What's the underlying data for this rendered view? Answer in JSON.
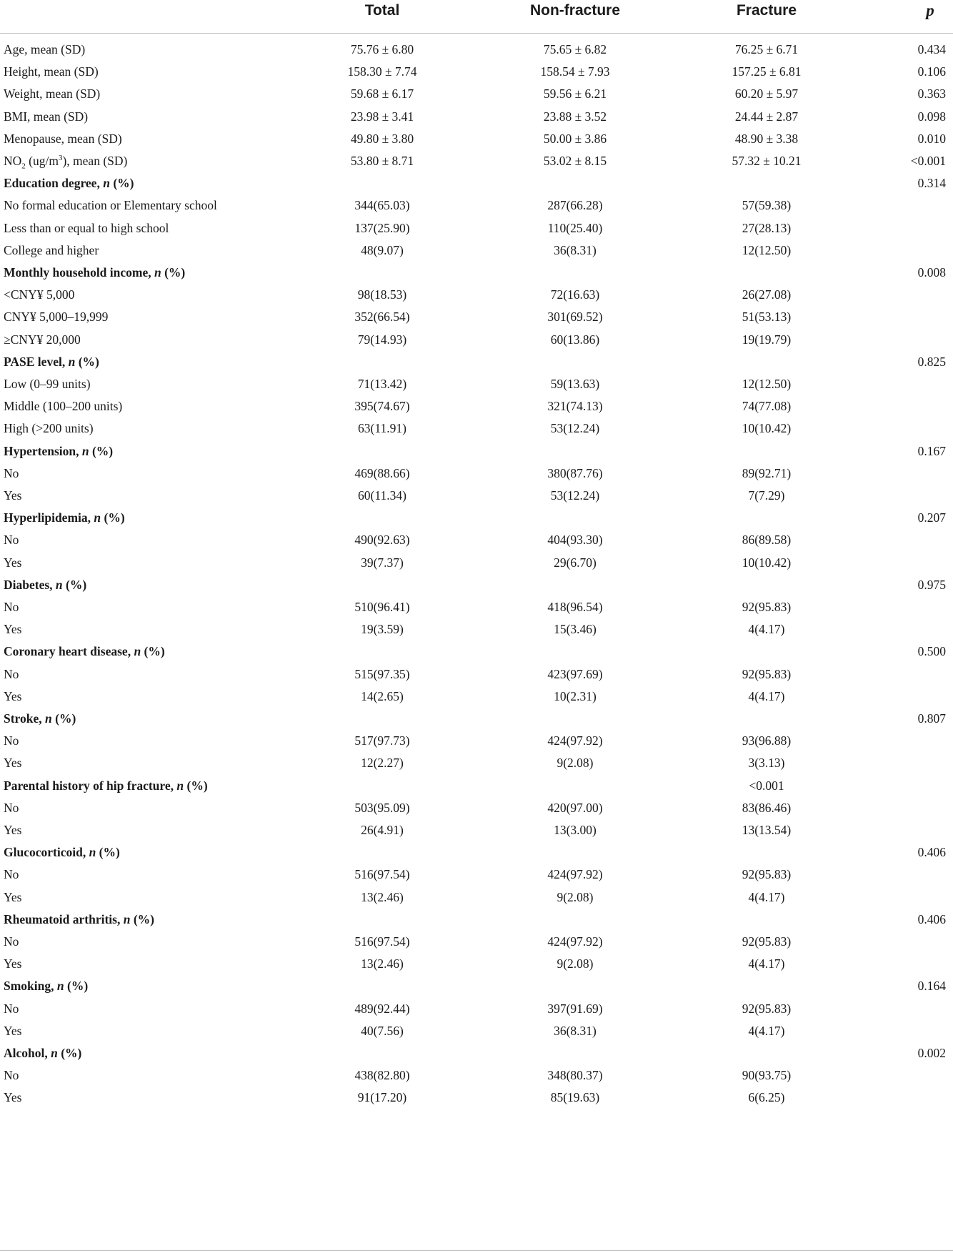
{
  "table": {
    "headers": [
      "",
      "Total",
      "Non-fracture",
      "Fracture",
      "p"
    ],
    "rows": [
      {
        "type": "data",
        "label": "Age, mean (SD)",
        "total": "75.76 ± 6.80",
        "non_fracture": "75.65 ± 6.82",
        "fracture": "76.25 ± 6.71",
        "p": "0.434"
      },
      {
        "type": "data",
        "label": "Height, mean (SD)",
        "total": "158.30 ± 7.74",
        "non_fracture": "158.54 ± 7.93",
        "fracture": "157.25 ± 6.81",
        "p": "0.106"
      },
      {
        "type": "data",
        "label": "Weight, mean (SD)",
        "total": "59.68 ± 6.17",
        "non_fracture": "59.56 ± 6.21",
        "fracture": "60.20 ± 5.97",
        "p": "0.363"
      },
      {
        "type": "data",
        "label": "BMI, mean (SD)",
        "total": "23.98 ± 3.41",
        "non_fracture": "23.88 ± 3.52",
        "fracture": "24.44 ± 2.87",
        "p": "0.098"
      },
      {
        "type": "data",
        "label": "Menopause, mean (SD)",
        "total": "49.80 ± 3.80",
        "non_fracture": "50.00 ± 3.86",
        "fracture": "48.90 ± 3.38",
        "p": "0.010"
      },
      {
        "type": "no2",
        "label": "NO₂ (ug/m³), mean (SD)",
        "total": "53.80 ± 8.71",
        "non_fracture": "53.02 ± 8.15",
        "fracture": "57.32 ± 10.21",
        "p": "<0.001"
      },
      {
        "type": "section",
        "label": "Education degree",
        "suffix": " (%)",
        "total": "",
        "non_fracture": "",
        "fracture": "",
        "p": "0.314"
      },
      {
        "type": "data",
        "label": "No formal education or Elementary school",
        "total": "344(65.03)",
        "non_fracture": "287(66.28)",
        "fracture": "57(59.38)",
        "p": ""
      },
      {
        "type": "data",
        "label": "Less than or equal to high school",
        "total": "137(25.90)",
        "non_fracture": "110(25.40)",
        "fracture": "27(28.13)",
        "p": ""
      },
      {
        "type": "data",
        "label": "College and higher",
        "total": "48(9.07)",
        "non_fracture": "36(8.31)",
        "fracture": "12(12.50)",
        "p": ""
      },
      {
        "type": "section",
        "label": "Monthly household income",
        "suffix": " (%)",
        "total": "",
        "non_fracture": "",
        "fracture": "",
        "p": "0.008"
      },
      {
        "type": "data",
        "label": "<CNY¥ 5,000",
        "total": "98(18.53)",
        "non_fracture": "72(16.63)",
        "fracture": "26(27.08)",
        "p": ""
      },
      {
        "type": "data",
        "label": "CNY¥ 5,000–19,999",
        "total": "352(66.54)",
        "non_fracture": "301(69.52)",
        "fracture": "51(53.13)",
        "p": ""
      },
      {
        "type": "data",
        "label": "≥CNY¥ 20,000",
        "total": "79(14.93)",
        "non_fracture": "60(13.86)",
        "fracture": "19(19.79)",
        "p": ""
      },
      {
        "type": "section",
        "label": "PASE level",
        "suffix": " (%)",
        "total": "",
        "non_fracture": "",
        "fracture": "",
        "p": "0.825"
      },
      {
        "type": "data",
        "label": "Low (0–99 units)",
        "total": "71(13.42)",
        "non_fracture": "59(13.63)",
        "fracture": "12(12.50)",
        "p": ""
      },
      {
        "type": "data",
        "label": "Middle (100–200 units)",
        "total": "395(74.67)",
        "non_fracture": "321(74.13)",
        "fracture": "74(77.08)",
        "p": ""
      },
      {
        "type": "data",
        "label": "High (>200 units)",
        "total": "63(11.91)",
        "non_fracture": "53(12.24)",
        "fracture": "10(10.42)",
        "p": ""
      },
      {
        "type": "section",
        "label": "Hypertension",
        "suffix": " (%)",
        "total": "",
        "non_fracture": "",
        "fracture": "",
        "p": "0.167"
      },
      {
        "type": "data",
        "label": "No",
        "total": "469(88.66)",
        "non_fracture": "380(87.76)",
        "fracture": "89(92.71)",
        "p": ""
      },
      {
        "type": "data",
        "label": "Yes",
        "total": "60(11.34)",
        "non_fracture": "53(12.24)",
        "fracture": "7(7.29)",
        "p": ""
      },
      {
        "type": "section",
        "label": "Hyperlipidemia",
        "suffix": " (%)",
        "total": "",
        "non_fracture": "",
        "fracture": "",
        "p": "0.207"
      },
      {
        "type": "data",
        "label": "No",
        "total": "490(92.63)",
        "non_fracture": "404(93.30)",
        "fracture": "86(89.58)",
        "p": ""
      },
      {
        "type": "data",
        "label": "Yes",
        "total": "39(7.37)",
        "non_fracture": "29(6.70)",
        "fracture": "10(10.42)",
        "p": ""
      },
      {
        "type": "section",
        "label": "Diabetes",
        "suffix": " (%)",
        "total": "",
        "non_fracture": "",
        "fracture": "",
        "p": "0.975"
      },
      {
        "type": "data",
        "label": "No",
        "total": "510(96.41)",
        "non_fracture": "418(96.54)",
        "fracture": "92(95.83)",
        "p": ""
      },
      {
        "type": "data",
        "label": "Yes",
        "total": "19(3.59)",
        "non_fracture": "15(3.46)",
        "fracture": "4(4.17)",
        "p": ""
      },
      {
        "type": "section",
        "label": "Coronary heart disease",
        "suffix": " (%)",
        "total": "",
        "non_fracture": "",
        "fracture": "",
        "p": "0.500"
      },
      {
        "type": "data",
        "label": "No",
        "total": "515(97.35)",
        "non_fracture": "423(97.69)",
        "fracture": "92(95.83)",
        "p": ""
      },
      {
        "type": "data",
        "label": "Yes",
        "total": "14(2.65)",
        "non_fracture": "10(2.31)",
        "fracture": "4(4.17)",
        "p": ""
      },
      {
        "type": "section",
        "label": "Stroke",
        "suffix": " (%)",
        "total": "",
        "non_fracture": "",
        "fracture": "",
        "p": "0.807"
      },
      {
        "type": "data",
        "label": "No",
        "total": "517(97.73)",
        "non_fracture": "424(97.92)",
        "fracture": "93(96.88)",
        "p": ""
      },
      {
        "type": "data",
        "label": "Yes",
        "total": "12(2.27)",
        "non_fracture": "9(2.08)",
        "fracture": "3(3.13)",
        "p": ""
      },
      {
        "type": "section",
        "label": "Parental history of hip fracture",
        "suffix": " (%)",
        "total": "",
        "non_fracture": "",
        "fracture": "<0.001",
        "p": ""
      },
      {
        "type": "data",
        "label": "No",
        "total": "503(95.09)",
        "non_fracture": "420(97.00)",
        "fracture": "83(86.46)",
        "p": ""
      },
      {
        "type": "data",
        "label": "Yes",
        "total": "26(4.91)",
        "non_fracture": "13(3.00)",
        "fracture": "13(13.54)",
        "p": ""
      },
      {
        "type": "section",
        "label": "Glucocorticoid",
        "suffix": " (%)",
        "total": "",
        "non_fracture": "",
        "fracture": "",
        "p": "0.406"
      },
      {
        "type": "data",
        "label": "No",
        "total": "516(97.54)",
        "non_fracture": "424(97.92)",
        "fracture": "92(95.83)",
        "p": ""
      },
      {
        "type": "data",
        "label": "Yes",
        "total": "13(2.46)",
        "non_fracture": "9(2.08)",
        "fracture": "4(4.17)",
        "p": ""
      },
      {
        "type": "section",
        "label": "Rheumatoid arthritis",
        "suffix": " (%)",
        "total": "",
        "non_fracture": "",
        "fracture": "",
        "p": "0.406"
      },
      {
        "type": "data",
        "label": "No",
        "total": "516(97.54)",
        "non_fracture": "424(97.92)",
        "fracture": "92(95.83)",
        "p": ""
      },
      {
        "type": "data",
        "label": "Yes",
        "total": "13(2.46)",
        "non_fracture": "9(2.08)",
        "fracture": "4(4.17)",
        "p": ""
      },
      {
        "type": "section",
        "label": "Smoking",
        "suffix": " (%)",
        "total": "",
        "non_fracture": "",
        "fracture": "",
        "p": "0.164"
      },
      {
        "type": "data",
        "label": "No",
        "total": "489(92.44)",
        "non_fracture": "397(91.69)",
        "fracture": "92(95.83)",
        "p": ""
      },
      {
        "type": "data",
        "label": "Yes",
        "total": "40(7.56)",
        "non_fracture": "36(8.31)",
        "fracture": "4(4.17)",
        "p": ""
      },
      {
        "type": "section",
        "label": "Alcohol",
        "suffix": " (%)",
        "total": "",
        "non_fracture": "",
        "fracture": "",
        "p": "0.002"
      },
      {
        "type": "data",
        "label": "No",
        "total": "438(82.80)",
        "non_fracture": "348(80.37)",
        "fracture": "90(93.75)",
        "p": ""
      },
      {
        "type": "data",
        "label": "Yes",
        "total": "91(17.20)",
        "non_fracture": "85(19.63)",
        "fracture": "6(6.25)",
        "p": ""
      }
    ]
  }
}
